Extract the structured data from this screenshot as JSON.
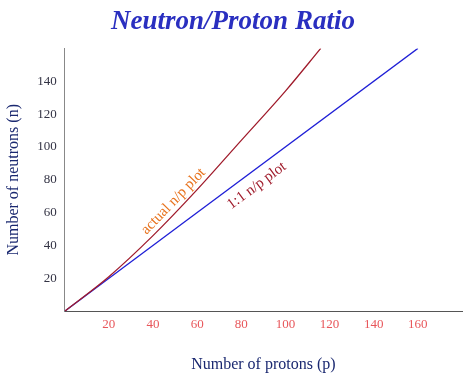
{
  "chart_data": {
    "type": "line",
    "title": "Neutron/Proton Ratio",
    "x_label": "Number of protons (p)",
    "y_label": "Number of neutrons (n)",
    "series": [
      {
        "name": "actual n/p plot",
        "color": "#a01c2c",
        "x": [
          0,
          20,
          40,
          60,
          80,
          100,
          116
        ],
        "values": [
          0,
          21,
          46,
          74,
          104,
          134,
          160
        ]
      },
      {
        "name": "1:1 n/p plot",
        "color": "#1f1fd6",
        "x": [
          0,
          160
        ],
        "values": [
          0,
          160
        ]
      }
    ],
    "xlim": [
      0,
      180
    ],
    "ylim": [
      0,
      160
    ],
    "xticks": [
      20,
      40,
      60,
      80,
      100,
      120,
      140,
      160
    ],
    "yticks": [
      20,
      40,
      60,
      80,
      100,
      120,
      140
    ],
    "grid": false
  }
}
